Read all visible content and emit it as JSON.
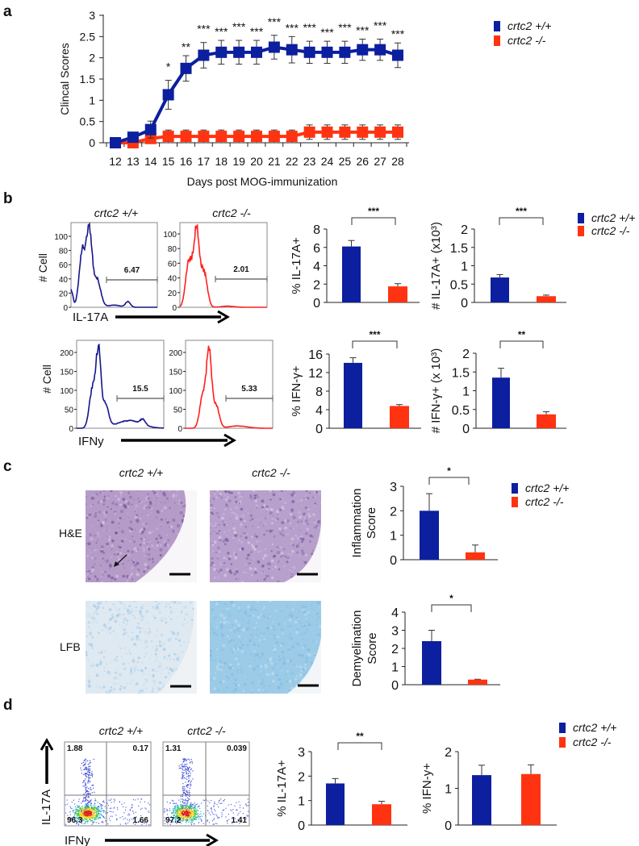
{
  "figure": {
    "panel_labels": [
      "a",
      "b",
      "c",
      "d"
    ],
    "legend": {
      "wt": "crtc2 +/+",
      "ko": "crtc2 -/-"
    },
    "colors": {
      "wt": "#0c1f9e",
      "ko": "#ff3311",
      "hist_wt": "#16168c",
      "hist_ko": "#ff1f1f"
    },
    "b": {
      "hist_titles": [
        "crtc2 +/+",
        "crtc2 -/-"
      ],
      "row1": {
        "x_marker": "IL-17A",
        "ylabel": "# Cell",
        "yticks": [
          "0",
          "20",
          "40",
          "60",
          "80",
          "100"
        ],
        "gates": [
          "6.47",
          "2.01"
        ]
      },
      "row2": {
        "x_marker": "IFNy",
        "ylabel": "# Cell",
        "yticks": [
          "0",
          "50",
          "100",
          "150",
          "200"
        ],
        "gates": [
          "15.5",
          "5.33"
        ]
      }
    },
    "c": {
      "titles": [
        "crtc2 +/+",
        "crtc2 -/-"
      ],
      "rows": [
        "H&E",
        "LFB"
      ]
    },
    "d": {
      "titles": [
        "crtc2 +/+",
        "crtc2 -/-"
      ],
      "x_marker": "IFNy",
      "y_marker": "IL-17A",
      "quadrants": [
        [
          "1.88",
          "0.17",
          "96.3",
          "1.66"
        ],
        [
          "1.31",
          "0.039",
          "97.2",
          "1.41"
        ]
      ]
    }
  },
  "chart_data": [
    {
      "id": "a",
      "type": "line",
      "xlabel": "Days post MOG-immunization",
      "ylabel": "Clincal Scores",
      "x": [
        12,
        13,
        14,
        15,
        16,
        17,
        18,
        19,
        20,
        21,
        22,
        23,
        24,
        25,
        26,
        27,
        28
      ],
      "ylim": [
        0,
        3
      ],
      "yticks": [
        "0",
        "0.5",
        "1",
        "1.5",
        "2",
        "2.5",
        "3"
      ],
      "legend": "top-right",
      "series": [
        {
          "name": "crtc2 +/+",
          "values": [
            0,
            0.13,
            0.31,
            1.13,
            1.75,
            2.06,
            2.13,
            2.13,
            2.13,
            2.25,
            2.19,
            2.13,
            2.13,
            2.13,
            2.19,
            2.19,
            2.06
          ],
          "errors": [
            0,
            0.1,
            0.2,
            0.34,
            0.3,
            0.3,
            0.28,
            0.28,
            0.28,
            0.28,
            0.31,
            0.26,
            0.26,
            0.26,
            0.25,
            0.25,
            0.29
          ]
        },
        {
          "name": "crtc2 -/-",
          "values": [
            0,
            0,
            0.1,
            0.15,
            0.15,
            0.15,
            0.15,
            0.15,
            0.15,
            0.15,
            0.15,
            0.25,
            0.25,
            0.25,
            0.25,
            0.25,
            0.25
          ],
          "errors": [
            0,
            0,
            0.05,
            0.15,
            0.15,
            0.15,
            0.15,
            0.15,
            0.15,
            0.15,
            0.15,
            0.17,
            0.17,
            0.17,
            0.17,
            0.17,
            0.17
          ]
        }
      ],
      "significance": [
        "",
        "",
        "",
        "*",
        "**",
        "***",
        "***",
        "***",
        "***",
        "***",
        "***",
        "***",
        "***",
        "***",
        "***",
        "***",
        "***"
      ]
    },
    {
      "id": "b_il17_pct",
      "type": "bar",
      "categories": [
        "crtc2 +/+",
        "crtc2 -/-"
      ],
      "values": [
        6.1,
        1.75
      ],
      "errors": [
        0.65,
        0.3
      ],
      "ylabel": "% IL-17A+",
      "ylim": [
        0,
        8
      ],
      "yticks": [
        "0",
        "2",
        "4",
        "6",
        "8"
      ],
      "significance": "***"
    },
    {
      "id": "b_il17_num",
      "type": "bar",
      "categories": [
        "crtc2 +/+",
        "crtc2 -/-"
      ],
      "values": [
        0.68,
        0.17
      ],
      "errors": [
        0.08,
        0.03
      ],
      "ylabel": "# IL-17A+  (x10³)",
      "ylim": [
        0,
        2
      ],
      "yticks": [
        "0",
        "0.5",
        "1",
        "1.5",
        "2"
      ],
      "significance": "***"
    },
    {
      "id": "b_ifng_pct",
      "type": "bar",
      "categories": [
        "crtc2 +/+",
        "crtc2 -/-"
      ],
      "values": [
        14.1,
        4.8
      ],
      "errors": [
        1.1,
        0.3
      ],
      "ylabel": "% IFN-γ+",
      "ylim": [
        0,
        16
      ],
      "yticks": [
        "0",
        "4",
        "8",
        "12",
        "16"
      ],
      "significance": "***"
    },
    {
      "id": "b_ifng_num",
      "type": "bar",
      "categories": [
        "crtc2 +/+",
        "crtc2 -/-"
      ],
      "values": [
        1.35,
        0.37
      ],
      "errors": [
        0.25,
        0.07
      ],
      "ylabel": "# IFN-γ+  (x 10³)",
      "ylim": [
        0,
        2
      ],
      "yticks": [
        "0",
        "0.5",
        "1",
        "1.5",
        "2"
      ],
      "significance": "**"
    },
    {
      "id": "c_infl",
      "type": "bar",
      "categories": [
        "crtc2 +/+",
        "crtc2 -/-"
      ],
      "values": [
        2.0,
        0.3
      ],
      "errors": [
        0.7,
        0.3
      ],
      "ylabel": [
        "Inflammation",
        "Score"
      ],
      "ylim": [
        0,
        3
      ],
      "yticks": [
        "0",
        "1",
        "2",
        "3"
      ],
      "significance": "*"
    },
    {
      "id": "c_demy",
      "type": "bar",
      "categories": [
        "crtc2 +/+",
        "crtc2 -/-"
      ],
      "values": [
        2.4,
        0.28
      ],
      "errors": [
        0.6,
        0.02
      ],
      "ylabel": [
        "Demyelination",
        "Score"
      ],
      "ylim": [
        0,
        4
      ],
      "yticks": [
        "0",
        "1",
        "2",
        "3",
        "4"
      ],
      "significance": "*"
    },
    {
      "id": "d_il17",
      "type": "bar",
      "categories": [
        "crtc2 +/+",
        "crtc2 -/-"
      ],
      "values": [
        1.7,
        0.85
      ],
      "errors": [
        0.2,
        0.12
      ],
      "ylabel": "% IL-17A+",
      "ylim": [
        0,
        3
      ],
      "yticks": [
        "0",
        "1",
        "2",
        "3"
      ],
      "significance": "**"
    },
    {
      "id": "d_ifng",
      "type": "bar",
      "categories": [
        "crtc2 +/+",
        "crtc2 -/-"
      ],
      "values": [
        1.36,
        1.39
      ],
      "errors": [
        0.27,
        0.25
      ],
      "ylabel": "% IFN-y+",
      "ylim": [
        0,
        2
      ],
      "yticks": [
        "0",
        "1",
        "2"
      ],
      "significance": ""
    }
  ]
}
